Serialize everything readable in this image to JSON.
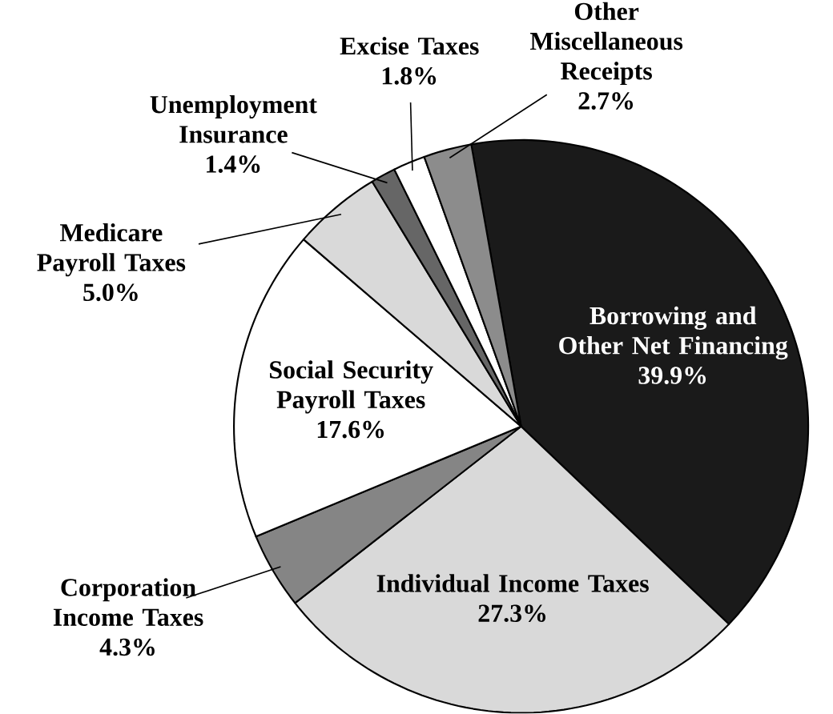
{
  "chart_data": {
    "type": "pie",
    "categories": [
      "Borrowing and Other Net Financing",
      "Individual Income Taxes",
      "Corporation Income Taxes",
      "Social Security Payroll Taxes",
      "Medicare Payroll Taxes",
      "Unemployment Insurance",
      "Excise Taxes",
      "Other Miscellaneous Receipts"
    ],
    "values": [
      39.9,
      27.3,
      4.3,
      17.6,
      5.0,
      1.4,
      1.8,
      2.7
    ],
    "colors": [
      "#1a1a1a",
      "#d9d9d9",
      "#858585",
      "#ffffff",
      "#d9d9d9",
      "#666666",
      "#ffffff",
      "#8c8c8c"
    ],
    "value_labels": [
      "39.9%",
      "27.3%",
      "4.3%",
      "17.6%",
      "5.0%",
      "1.4%",
      "1.8%",
      "2.7%"
    ]
  }
}
